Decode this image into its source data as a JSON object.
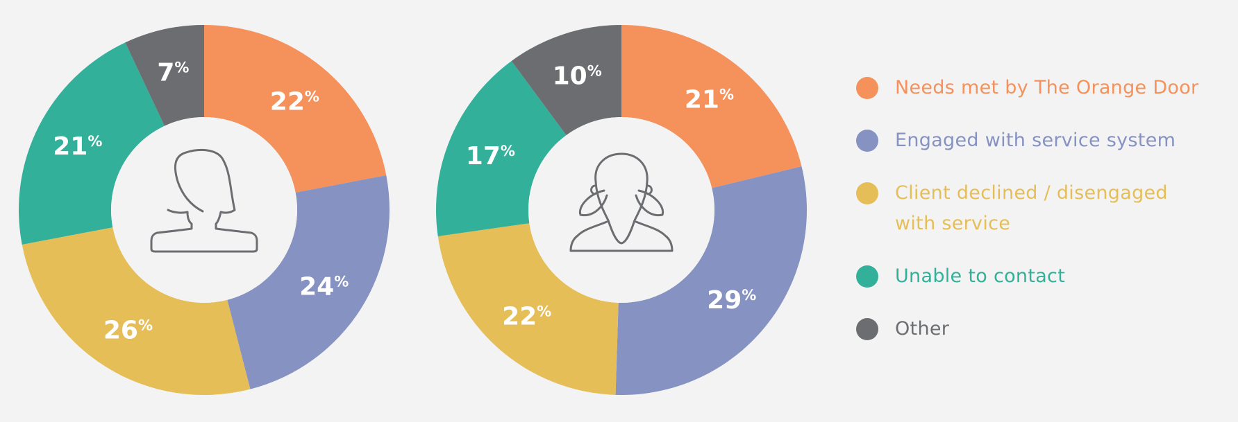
{
  "colors": {
    "background": "#f3f3f3",
    "orange": "#f5915b",
    "purple": "#8692c2",
    "yellow": "#e6be58",
    "teal": "#33b09a",
    "gray": "#6b6d70",
    "icon": "#6b6d70"
  },
  "legend": [
    {
      "label": "Needs met by The Orange Door",
      "color": "#f5915b"
    },
    {
      "label": "Engaged with service system",
      "color": "#8692c2"
    },
    {
      "label": "Client declined / disengaged with service",
      "color": "#e6be58"
    },
    {
      "label": "Unable to contact",
      "color": "#33b09a"
    },
    {
      "label": "Other",
      "color": "#6b6d70"
    }
  ],
  "chart_data": [
    {
      "type": "pie",
      "style": "donut",
      "center_icon": "woman-icon",
      "categories": [
        "Needs met by The Orange Door",
        "Engaged with service system",
        "Client declined / disengaged with service",
        "Unable to contact",
        "Other"
      ],
      "values": [
        22,
        24,
        26,
        21,
        7
      ],
      "labels": [
        "22",
        "24",
        "26",
        "21",
        "7"
      ],
      "unit": "%"
    },
    {
      "type": "pie",
      "style": "donut",
      "center_icon": "girl-icon",
      "categories": [
        "Needs met by The Orange Door",
        "Engaged with service system",
        "Client declined / disengaged with service",
        "Unable to contact",
        "Other"
      ],
      "values": [
        21,
        29,
        22,
        17,
        10
      ],
      "labels": [
        "21",
        "29",
        "22",
        "17",
        "10"
      ],
      "unit": "%"
    }
  ]
}
